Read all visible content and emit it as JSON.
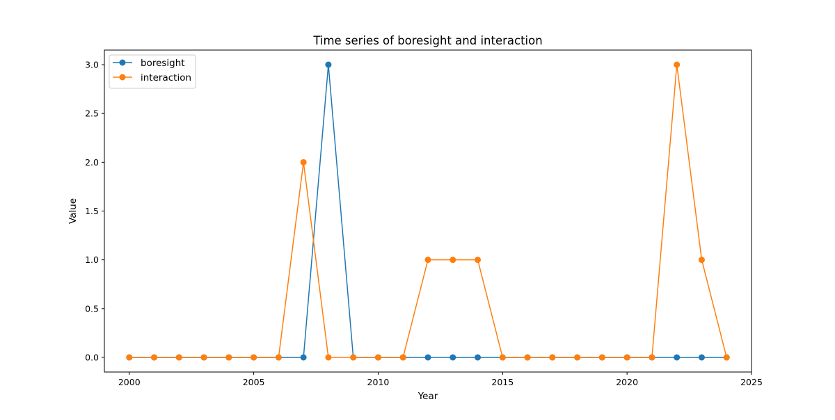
{
  "chart_data": {
    "type": "line",
    "title": "Time series of boresight and interaction",
    "xlabel": "Year",
    "ylabel": "Value",
    "xlim": [
      1999,
      2025
    ],
    "ylim": [
      -0.15,
      3.15
    ],
    "xticks": [
      2000,
      2005,
      2010,
      2015,
      2020,
      2025
    ],
    "yticks": [
      0.0,
      0.5,
      1.0,
      1.5,
      2.0,
      2.5,
      3.0
    ],
    "xtick_labels": [
      "2000",
      "2005",
      "2010",
      "2015",
      "2020",
      "2025"
    ],
    "ytick_labels": [
      "0.0",
      "0.5",
      "1.0",
      "1.5",
      "2.0",
      "2.5",
      "3.0"
    ],
    "grid": false,
    "legend_position": "top-left",
    "marker": "circle",
    "x": [
      2000,
      2001,
      2002,
      2003,
      2004,
      2005,
      2006,
      2007,
      2008,
      2009,
      2010,
      2011,
      2012,
      2013,
      2014,
      2015,
      2016,
      2017,
      2018,
      2019,
      2020,
      2021,
      2022,
      2023,
      2024
    ],
    "series": [
      {
        "name": "boresight",
        "color": "#1f77b4",
        "values": [
          0,
          0,
          0,
          0,
          0,
          0,
          0,
          0,
          3,
          0,
          0,
          0,
          0,
          0,
          0,
          0,
          0,
          0,
          0,
          0,
          0,
          0,
          0,
          0,
          0
        ]
      },
      {
        "name": "interaction",
        "color": "#ff7f0e",
        "values": [
          0,
          0,
          0,
          0,
          0,
          0,
          0,
          2,
          0,
          0,
          0,
          0,
          1,
          1,
          1,
          0,
          0,
          0,
          0,
          0,
          0,
          0,
          3,
          1,
          0
        ]
      }
    ]
  }
}
